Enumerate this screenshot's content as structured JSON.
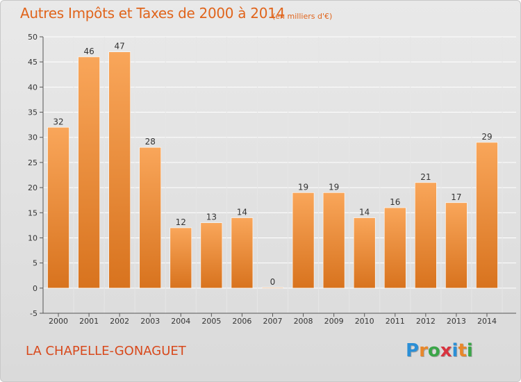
{
  "header": {
    "title": "Autres Impôts et Taxes de 2000 à 2014",
    "subtitle": "(en milliers d'€)"
  },
  "footer": {
    "commune": "LA CHAPELLE-GONAGUET",
    "logo_letters": [
      "P",
      "r",
      "o",
      "x",
      "i",
      "t",
      "i"
    ],
    "logo_colors": [
      "#2b8fd6",
      "#e8872a",
      "#3aa648",
      "#d8333f",
      "#2b8fd6",
      "#e8872a",
      "#3aa648"
    ]
  },
  "colors": {
    "bar_light": "#f9a65a",
    "bar_dark": "#d8731e",
    "title": "#e0641b",
    "grid": "#ffffff",
    "axis": "#555555"
  },
  "chart_data": {
    "type": "bar",
    "categories": [
      "2000",
      "2001",
      "2002",
      "2003",
      "2004",
      "2005",
      "2006",
      "2007",
      "2008",
      "2009",
      "2010",
      "2011",
      "2012",
      "2013",
      "2014"
    ],
    "values": [
      32,
      46,
      47,
      28,
      12,
      13,
      14,
      0,
      19,
      19,
      14,
      16,
      21,
      17,
      29
    ],
    "ylim": [
      -5,
      50
    ],
    "yticks": [
      -5,
      0,
      5,
      10,
      15,
      20,
      25,
      30,
      35,
      40,
      45,
      50
    ],
    "grid": true,
    "data_labels": true,
    "legend": "none"
  }
}
